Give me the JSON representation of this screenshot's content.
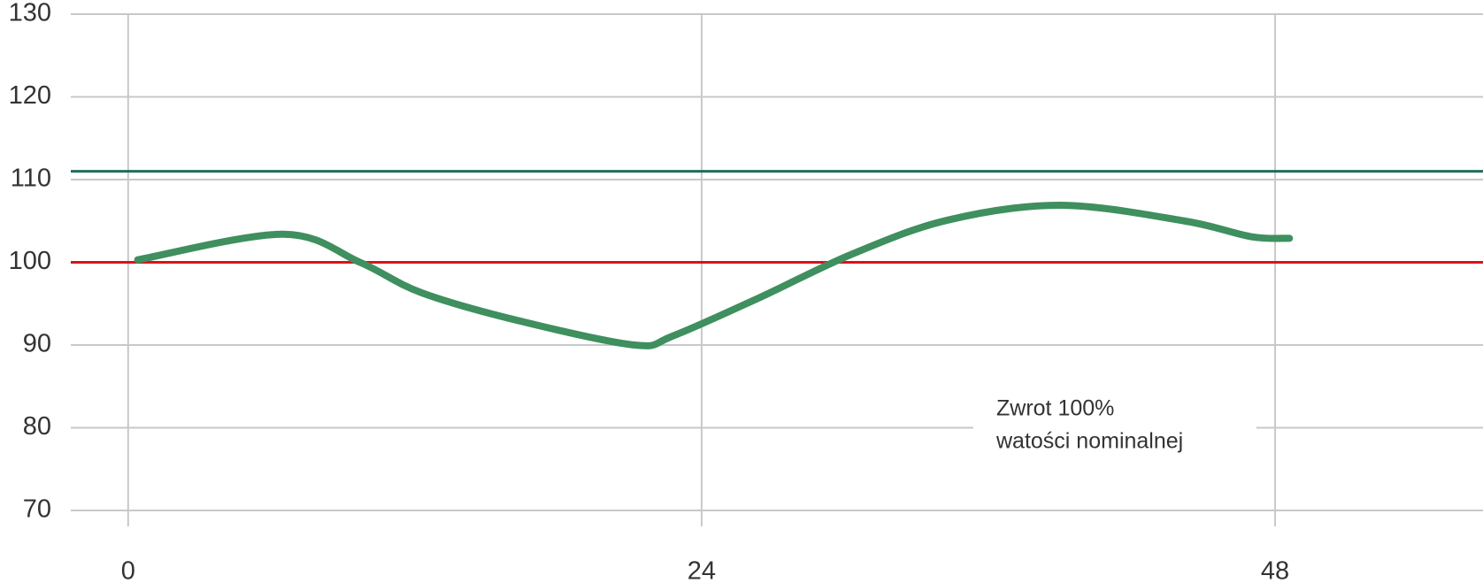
{
  "chart_data": {
    "type": "line",
    "x": [
      0.4,
      6.5,
      9.7,
      12.3,
      16.4,
      21.2,
      22.8,
      26.4,
      30.3,
      34.3,
      39.0,
      44.2,
      47.0,
      48.6
    ],
    "series": [
      {
        "color": "#3f8f5f",
        "values": [
          100.3,
          103.4,
          100,
          96.3,
          92.9,
          90,
          91.1,
          95.7,
          101,
          105.1,
          106.9,
          105,
          103.1,
          102.9
        ]
      }
    ],
    "hlines": [
      {
        "value": 111,
        "color": "#1f6e5e"
      },
      {
        "value": 100,
        "color": "#d9141b"
      }
    ],
    "xlim": [
      -2.4,
      56.7
    ],
    "ylim": [
      70,
      130
    ],
    "xticks": [
      0,
      24,
      48
    ],
    "yticks": [
      70,
      80,
      90,
      100,
      110,
      120,
      130
    ],
    "grid": true,
    "annotations": [
      "Zwrot 100%",
      "watości nominalnej"
    ]
  }
}
